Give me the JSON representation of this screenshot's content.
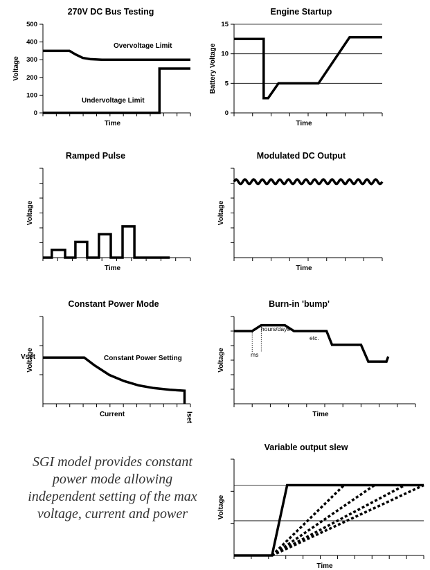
{
  "caption": "SGI model provides constant power mode allowing independent setting of the max voltage, current and power",
  "chart_data": [
    {
      "id": "bus",
      "type": "line",
      "title": "270V DC Bus Testing",
      "xlabel": "Time",
      "ylabel": "Voltage",
      "yticks": [
        0,
        100,
        200,
        300,
        400,
        500
      ],
      "ylim": [
        0,
        500
      ],
      "xlim": [
        0,
        10
      ],
      "annotations": [
        "Overvoltage Limit",
        "Undervoltage Limit"
      ],
      "series": [
        {
          "x": [
            0,
            1.8,
            2.2,
            2.7,
            3.2,
            4.0,
            10
          ],
          "y": [
            350,
            350,
            330,
            310,
            303,
            300,
            300
          ]
        },
        {
          "x": [
            0,
            7.9,
            7.9,
            10
          ],
          "y": [
            0,
            0,
            250,
            250
          ]
        }
      ]
    },
    {
      "id": "engine",
      "type": "line",
      "title": "Engine Startup",
      "xlabel": "Time",
      "ylabel": "Battery Voltage",
      "yticks": [
        0,
        5,
        10,
        15
      ],
      "ylim": [
        0,
        15
      ],
      "xlim": [
        0,
        10
      ],
      "series": [
        {
          "x": [
            0,
            2.0,
            2.0,
            2.3,
            3.0,
            5.7,
            7.8,
            10
          ],
          "y": [
            12.5,
            12.5,
            2.5,
            2.5,
            5,
            5,
            12.8,
            12.8
          ]
        }
      ]
    },
    {
      "id": "ramped",
      "type": "line",
      "title": "Ramped Pulse",
      "xlabel": "Time",
      "ylabel": "Voltage",
      "ylim": [
        0,
        4
      ],
      "xlim": [
        0,
        10
      ],
      "series": [
        {
          "x": [
            0,
            0.6,
            0.6,
            1.5,
            1.5,
            2.2,
            2.2,
            3.0,
            3.0,
            3.8,
            3.8,
            4.6,
            4.6,
            5.4,
            5.4,
            6.2,
            6.2,
            7.0,
            7.0,
            8.6
          ],
          "y": [
            0,
            0,
            0.35,
            0.35,
            0,
            0,
            0.7,
            0.7,
            0,
            0,
            1.05,
            1.05,
            0,
            0,
            1.4,
            1.4,
            0,
            0,
            0,
            0
          ]
        }
      ]
    },
    {
      "id": "modulated",
      "type": "line",
      "title": "Modulated DC Output",
      "xlabel": "Time",
      "ylabel": "Voltage",
      "ylim": [
        0,
        10
      ],
      "xlim": [
        0,
        10
      ],
      "series": [
        {
          "x": [
            0,
            10
          ],
          "y": [
            8.5,
            8.5
          ],
          "ripple": {
            "amplitude": 0.25,
            "cycles": 17
          }
        }
      ]
    },
    {
      "id": "cpower",
      "type": "line",
      "title": "Constant Power Mode",
      "xlabel": "Current",
      "ylabel": "Voltage",
      "yticks_labels": [
        "Vset"
      ],
      "xticks_labels": [
        "Iset"
      ],
      "annotations": [
        "Constant Power Setting"
      ],
      "ylim": [
        0,
        10
      ],
      "xlim": [
        0,
        10
      ],
      "series": [
        {
          "x": [
            0,
            2.8,
            3.5,
            4.5,
            5.5,
            6.5,
            7.5,
            8.6,
            9.6,
            9.6
          ],
          "y": [
            5.3,
            5.3,
            4.4,
            3.3,
            2.6,
            2.1,
            1.8,
            1.6,
            1.5,
            0
          ]
        }
      ]
    },
    {
      "id": "burnin",
      "type": "line",
      "title": "Burn-in 'bump'",
      "xlabel": "Time",
      "ylabel": "Voltage",
      "annotations": [
        "hours/days",
        "ms",
        "etc."
      ],
      "ylim": [
        0,
        12
      ],
      "xlim": [
        0,
        10
      ],
      "series": [
        {
          "x": [
            0,
            1.0,
            1.5,
            2.8,
            3.3,
            4.5,
            5.1,
            5.4,
            5.9,
            6.6,
            7.0,
            7.4,
            7.8,
            8.4,
            8.5
          ],
          "y": [
            10,
            10,
            10.8,
            10.8,
            10,
            10,
            10,
            8.1,
            8.1,
            8.1,
            8.1,
            5.8,
            5.8,
            5.8,
            6.5
          ]
        }
      ]
    },
    {
      "id": "slew",
      "type": "line",
      "title": "Variable output slew",
      "xlabel": "Time",
      "ylabel": "Voltage",
      "ylim": [
        0,
        10
      ],
      "xlim": [
        0,
        10
      ],
      "series": [
        {
          "x": [
            0,
            2.0,
            2.8,
            10
          ],
          "y": [
            0,
            0,
            7.3,
            7.3
          ]
        },
        {
          "style": "dotted",
          "x": [
            2.0,
            5.8
          ],
          "y": [
            0,
            7.3
          ]
        },
        {
          "style": "dotted",
          "x": [
            2.0,
            7.4
          ],
          "y": [
            0,
            7.3
          ]
        },
        {
          "style": "dotted",
          "x": [
            2.0,
            9.0
          ],
          "y": [
            0,
            7.3
          ]
        },
        {
          "style": "dotted",
          "x": [
            2.0,
            10
          ],
          "y": [
            0,
            7.3
          ]
        }
      ]
    }
  ]
}
